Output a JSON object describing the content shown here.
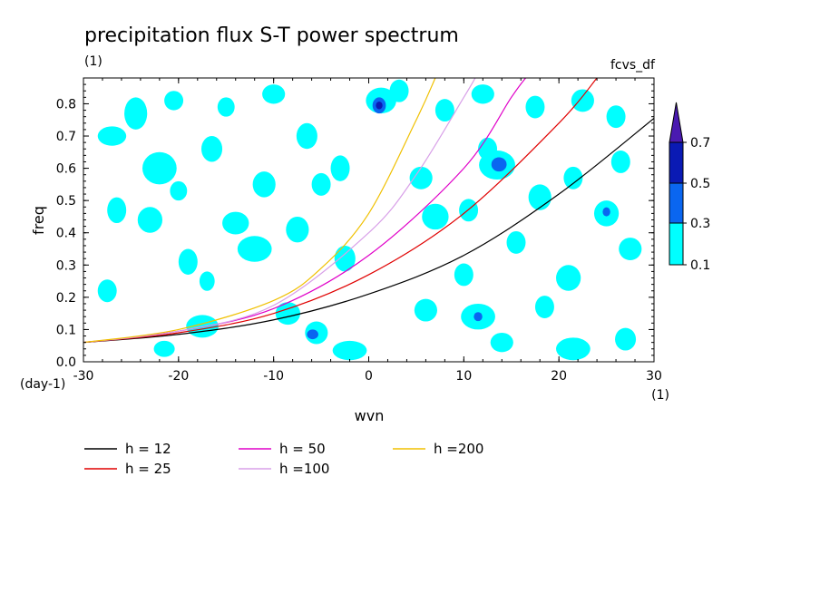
{
  "chart_data": {
    "type": "contour",
    "title": "precipitation flux S-T power spectrum",
    "subtitle_left": "(1)",
    "subtitle_right": "fcvs_df",
    "xlabel": "wvn",
    "x_unit": "(1)",
    "ylabel": "freq",
    "y_unit": "(day-1)",
    "xlim": [
      -30,
      30
    ],
    "ylim": [
      0,
      0.88
    ],
    "x_ticks": [
      -30,
      -20,
      -10,
      0,
      10,
      20,
      30
    ],
    "y_ticks": [
      0.0,
      0.1,
      0.2,
      0.3,
      0.4,
      0.5,
      0.6,
      0.7,
      0.8
    ],
    "y_tick_labels": [
      "0.0",
      "0.1",
      "0.2",
      "0.3",
      "0.4",
      "0.5",
      "0.6",
      "0.7",
      "0.8"
    ],
    "colorbar": {
      "levels": [
        "0.1",
        "0.3",
        "0.5",
        "0.7"
      ],
      "colors": [
        "#00ffff",
        "#0a66f0",
        "#0a1ab4",
        "#4a1ab0"
      ]
    },
    "series": [
      {
        "name": "h = 12",
        "color": "#000000",
        "x": [
          -30,
          -20,
          -10,
          0,
          10,
          20,
          30
        ],
        "y": [
          0.06,
          0.085,
          0.13,
          0.21,
          0.33,
          0.52,
          0.755
        ]
      },
      {
        "name": "h = 25",
        "color": "#e00000",
        "x": [
          -30,
          -20,
          -10,
          0,
          10,
          20,
          24
        ],
        "y": [
          0.06,
          0.09,
          0.15,
          0.27,
          0.46,
          0.74,
          0.88
        ]
      },
      {
        "name": "h = 50",
        "color": "#e000c8",
        "x": [
          -30,
          -20,
          -10,
          0,
          10,
          15,
          16.5
        ],
        "y": [
          0.06,
          0.095,
          0.165,
          0.33,
          0.6,
          0.82,
          0.88
        ]
      },
      {
        "name": "h =100",
        "color": "#d8a0e8",
        "x": [
          -30,
          -20,
          -10,
          0,
          5,
          10,
          11.2
        ],
        "y": [
          0.06,
          0.095,
          0.175,
          0.4,
          0.58,
          0.82,
          0.88
        ]
      },
      {
        "name": "h =200",
        "color": "#f0c000",
        "x": [
          -30,
          -20,
          -10,
          -5,
          0,
          5,
          7
        ],
        "y": [
          0.06,
          0.1,
          0.19,
          0.29,
          0.46,
          0.75,
          0.88
        ]
      }
    ],
    "contour_patches": [
      {
        "level": 0,
        "x": -24.5,
        "y": 0.77,
        "w": 1.2,
        "h": 0.05
      },
      {
        "level": 0,
        "x": -20.5,
        "y": 0.81,
        "w": 1.0,
        "h": 0.03
      },
      {
        "level": 0,
        "x": -15.0,
        "y": 0.79,
        "w": 0.9,
        "h": 0.03
      },
      {
        "level": 0,
        "x": -10.0,
        "y": 0.83,
        "w": 1.2,
        "h": 0.03
      },
      {
        "level": 0,
        "x": -27.0,
        "y": 0.7,
        "w": 1.5,
        "h": 0.03
      },
      {
        "level": 0,
        "x": -16.5,
        "y": 0.66,
        "w": 1.1,
        "h": 0.04
      },
      {
        "level": 0,
        "x": -6.5,
        "y": 0.7,
        "w": 1.1,
        "h": 0.04
      },
      {
        "level": 0,
        "x": -22.0,
        "y": 0.6,
        "w": 1.8,
        "h": 0.05
      },
      {
        "level": 0,
        "x": -11.0,
        "y": 0.55,
        "w": 1.2,
        "h": 0.04
      },
      {
        "level": 0,
        "x": -20.0,
        "y": 0.53,
        "w": 0.9,
        "h": 0.03
      },
      {
        "level": 0,
        "x": -5.0,
        "y": 0.55,
        "w": 1.0,
        "h": 0.035
      },
      {
        "level": 0,
        "x": -26.5,
        "y": 0.47,
        "w": 1.0,
        "h": 0.04
      },
      {
        "level": 0,
        "x": -23.0,
        "y": 0.44,
        "w": 1.3,
        "h": 0.04
      },
      {
        "level": 0,
        "x": -14.0,
        "y": 0.43,
        "w": 1.4,
        "h": 0.035
      },
      {
        "level": 0,
        "x": -7.5,
        "y": 0.41,
        "w": 1.2,
        "h": 0.04
      },
      {
        "level": 0,
        "x": -19.0,
        "y": 0.31,
        "w": 1.0,
        "h": 0.04
      },
      {
        "level": 0,
        "x": -12.0,
        "y": 0.35,
        "w": 1.8,
        "h": 0.04
      },
      {
        "level": 0,
        "x": -2.5,
        "y": 0.32,
        "w": 1.1,
        "h": 0.04
      },
      {
        "level": 0,
        "x": -27.5,
        "y": 0.22,
        "w": 1.0,
        "h": 0.035
      },
      {
        "level": 0,
        "x": -17.0,
        "y": 0.25,
        "w": 0.8,
        "h": 0.03
      },
      {
        "level": 0,
        "x": -17.5,
        "y": 0.11,
        "w": 1.7,
        "h": 0.035
      },
      {
        "level": 0,
        "x": -8.5,
        "y": 0.15,
        "w": 1.3,
        "h": 0.035
      },
      {
        "level": 0,
        "x": -5.5,
        "y": 0.09,
        "w": 1.2,
        "h": 0.035
      },
      {
        "level": 0,
        "x": -2.0,
        "y": 0.035,
        "w": 1.8,
        "h": 0.03
      },
      {
        "level": 0,
        "x": -21.5,
        "y": 0.04,
        "w": 1.1,
        "h": 0.025
      },
      {
        "level": 0,
        "x": -3.0,
        "y": 0.6,
        "w": 1.0,
        "h": 0.04
      },
      {
        "level": 0,
        "x": 1.3,
        "y": 0.81,
        "w": 1.6,
        "h": 0.04
      },
      {
        "level": 0,
        "x": 3.2,
        "y": 0.84,
        "w": 1.0,
        "h": 0.035
      },
      {
        "level": 0,
        "x": 8.0,
        "y": 0.78,
        "w": 1.0,
        "h": 0.035
      },
      {
        "level": 0,
        "x": 12.5,
        "y": 0.66,
        "w": 1.0,
        "h": 0.035
      },
      {
        "level": 0,
        "x": 12.0,
        "y": 0.83,
        "w": 1.2,
        "h": 0.03
      },
      {
        "level": 0,
        "x": 17.5,
        "y": 0.79,
        "w": 1.0,
        "h": 0.035
      },
      {
        "level": 0,
        "x": 22.5,
        "y": 0.81,
        "w": 1.2,
        "h": 0.035
      },
      {
        "level": 0,
        "x": 26.0,
        "y": 0.76,
        "w": 1.0,
        "h": 0.035
      },
      {
        "level": 0,
        "x": 13.5,
        "y": 0.61,
        "w": 1.9,
        "h": 0.045
      },
      {
        "level": 0,
        "x": 26.5,
        "y": 0.62,
        "w": 1.0,
        "h": 0.035
      },
      {
        "level": 0,
        "x": 21.5,
        "y": 0.57,
        "w": 1.0,
        "h": 0.035
      },
      {
        "level": 0,
        "x": 5.5,
        "y": 0.57,
        "w": 1.2,
        "h": 0.035
      },
      {
        "level": 0,
        "x": 7.0,
        "y": 0.45,
        "w": 1.4,
        "h": 0.04
      },
      {
        "level": 0,
        "x": 10.5,
        "y": 0.47,
        "w": 1.0,
        "h": 0.035
      },
      {
        "level": 0,
        "x": 18.0,
        "y": 0.51,
        "w": 1.2,
        "h": 0.04
      },
      {
        "level": 0,
        "x": 25.0,
        "y": 0.46,
        "w": 1.3,
        "h": 0.04
      },
      {
        "level": 0,
        "x": 15.5,
        "y": 0.37,
        "w": 1.0,
        "h": 0.035
      },
      {
        "level": 0,
        "x": 27.5,
        "y": 0.35,
        "w": 1.2,
        "h": 0.035
      },
      {
        "level": 0,
        "x": 10.0,
        "y": 0.27,
        "w": 1.0,
        "h": 0.035
      },
      {
        "level": 0,
        "x": 21.0,
        "y": 0.26,
        "w": 1.3,
        "h": 0.04
      },
      {
        "level": 0,
        "x": 6.0,
        "y": 0.16,
        "w": 1.2,
        "h": 0.035
      },
      {
        "level": 0,
        "x": 11.5,
        "y": 0.14,
        "w": 1.8,
        "h": 0.04
      },
      {
        "level": 0,
        "x": 18.5,
        "y": 0.17,
        "w": 1.0,
        "h": 0.035
      },
      {
        "level": 0,
        "x": 21.5,
        "y": 0.04,
        "w": 1.8,
        "h": 0.035
      },
      {
        "level": 0,
        "x": 27.0,
        "y": 0.07,
        "w": 1.1,
        "h": 0.035
      },
      {
        "level": 0,
        "x": 14.0,
        "y": 0.06,
        "w": 1.2,
        "h": 0.03
      },
      {
        "level": 1,
        "x": 1.1,
        "y": 0.795,
        "w": 0.7,
        "h": 0.025
      },
      {
        "level": 1,
        "x": 13.7,
        "y": 0.612,
        "w": 0.8,
        "h": 0.022
      },
      {
        "level": 1,
        "x": -5.9,
        "y": 0.085,
        "w": 0.6,
        "h": 0.015
      },
      {
        "level": 1,
        "x": 11.5,
        "y": 0.14,
        "w": 0.45,
        "h": 0.014
      },
      {
        "level": 1,
        "x": 25.0,
        "y": 0.465,
        "w": 0.4,
        "h": 0.014
      },
      {
        "level": 2,
        "x": 1.1,
        "y": 0.795,
        "w": 0.35,
        "h": 0.012
      }
    ]
  },
  "legend": [
    {
      "label": "h = 12",
      "color": "#000000"
    },
    {
      "label": "h = 25",
      "color": "#e00000"
    },
    {
      "label": "h = 50",
      "color": "#e000c8"
    },
    {
      "label": "h =100",
      "color": "#d8a0e8"
    },
    {
      "label": "h =200",
      "color": "#f0c000"
    }
  ]
}
